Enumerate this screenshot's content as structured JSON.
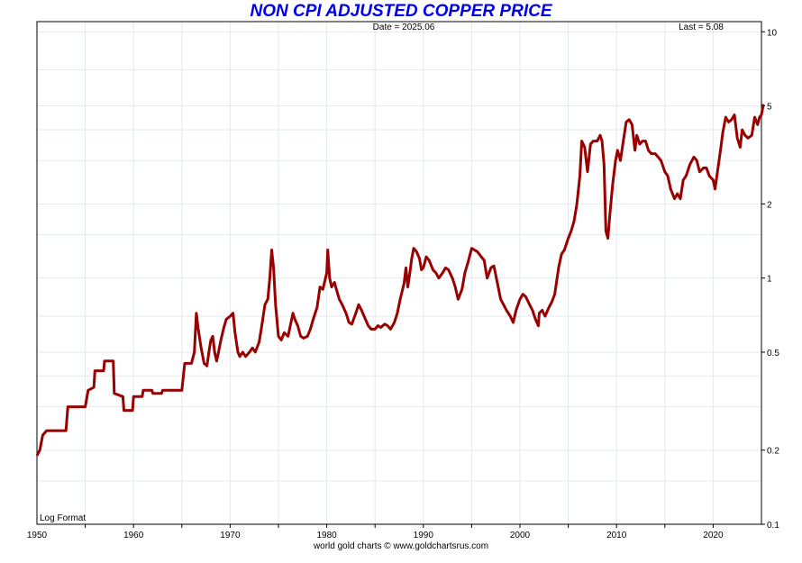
{
  "chart_data": {
    "type": "line",
    "title": "NON CPI ADJUSTED COPPER PRICE",
    "date_label": "Date = 2025.06",
    "last_label": "Last = 5.08",
    "scale_label": "Log Format",
    "credit": "world gold charts © www.goldchartsrus.com",
    "xlim": [
      1950,
      2025
    ],
    "ylim": [
      0.1,
      11
    ],
    "y_scale": "log",
    "grid": true,
    "x_ticks": [
      "1950",
      "1960",
      "1970",
      "1980",
      "1990",
      "2000",
      "2010",
      "2020"
    ],
    "y_ticks": [
      "10",
      "5",
      "2",
      "1",
      "0.5",
      "0.2",
      "0.1"
    ],
    "series": [
      {
        "color": "#990000",
        "points": [
          [
            1950.0,
            0.19
          ],
          [
            1950.3,
            0.2
          ],
          [
            1950.6,
            0.23
          ],
          [
            1951.0,
            0.24
          ],
          [
            1952.0,
            0.24
          ],
          [
            1953.0,
            0.24
          ],
          [
            1953.2,
            0.3
          ],
          [
            1954.0,
            0.3
          ],
          [
            1955.0,
            0.3
          ],
          [
            1955.3,
            0.35
          ],
          [
            1955.9,
            0.36
          ],
          [
            1956.0,
            0.42
          ],
          [
            1956.9,
            0.42
          ],
          [
            1957.0,
            0.46
          ],
          [
            1957.9,
            0.46
          ],
          [
            1958.0,
            0.34
          ],
          [
            1958.9,
            0.33
          ],
          [
            1959.0,
            0.29
          ],
          [
            1959.9,
            0.29
          ],
          [
            1960.0,
            0.33
          ],
          [
            1960.9,
            0.33
          ],
          [
            1961.0,
            0.35
          ],
          [
            1961.9,
            0.35
          ],
          [
            1962.0,
            0.34
          ],
          [
            1962.9,
            0.34
          ],
          [
            1963.0,
            0.35
          ],
          [
            1965.0,
            0.35
          ],
          [
            1965.3,
            0.45
          ],
          [
            1966.0,
            0.45
          ],
          [
            1966.3,
            0.5
          ],
          [
            1966.5,
            0.72
          ],
          [
            1966.7,
            0.62
          ],
          [
            1967.0,
            0.52
          ],
          [
            1967.3,
            0.45
          ],
          [
            1967.6,
            0.44
          ],
          [
            1967.8,
            0.5
          ],
          [
            1968.0,
            0.56
          ],
          [
            1968.2,
            0.58
          ],
          [
            1968.4,
            0.5
          ],
          [
            1968.6,
            0.46
          ],
          [
            1968.8,
            0.5
          ],
          [
            1969.0,
            0.55
          ],
          [
            1969.3,
            0.62
          ],
          [
            1969.6,
            0.68
          ],
          [
            1970.0,
            0.7
          ],
          [
            1970.3,
            0.72
          ],
          [
            1970.5,
            0.6
          ],
          [
            1970.8,
            0.5
          ],
          [
            1971.0,
            0.48
          ],
          [
            1971.3,
            0.5
          ],
          [
            1971.6,
            0.48
          ],
          [
            1972.0,
            0.5
          ],
          [
            1972.3,
            0.52
          ],
          [
            1972.6,
            0.5
          ],
          [
            1973.0,
            0.55
          ],
          [
            1973.3,
            0.65
          ],
          [
            1973.6,
            0.78
          ],
          [
            1973.9,
            0.82
          ],
          [
            1974.1,
            1.0
          ],
          [
            1974.3,
            1.3
          ],
          [
            1974.5,
            1.1
          ],
          [
            1974.7,
            0.78
          ],
          [
            1975.0,
            0.58
          ],
          [
            1975.3,
            0.56
          ],
          [
            1975.6,
            0.6
          ],
          [
            1976.0,
            0.58
          ],
          [
            1976.3,
            0.66
          ],
          [
            1976.5,
            0.72
          ],
          [
            1976.7,
            0.68
          ],
          [
            1977.0,
            0.64
          ],
          [
            1977.3,
            0.58
          ],
          [
            1977.6,
            0.57
          ],
          [
            1978.0,
            0.58
          ],
          [
            1978.3,
            0.62
          ],
          [
            1978.6,
            0.68
          ],
          [
            1979.0,
            0.76
          ],
          [
            1979.3,
            0.92
          ],
          [
            1979.6,
            0.9
          ],
          [
            1980.0,
            1.05
          ],
          [
            1980.1,
            1.3
          ],
          [
            1980.3,
            1.0
          ],
          [
            1980.5,
            0.92
          ],
          [
            1980.8,
            0.96
          ],
          [
            1981.0,
            0.9
          ],
          [
            1981.3,
            0.82
          ],
          [
            1981.6,
            0.78
          ],
          [
            1982.0,
            0.72
          ],
          [
            1982.3,
            0.66
          ],
          [
            1982.6,
            0.65
          ],
          [
            1983.0,
            0.72
          ],
          [
            1983.3,
            0.78
          ],
          [
            1983.6,
            0.74
          ],
          [
            1984.0,
            0.68
          ],
          [
            1984.3,
            0.64
          ],
          [
            1984.6,
            0.62
          ],
          [
            1985.0,
            0.62
          ],
          [
            1985.3,
            0.64
          ],
          [
            1985.6,
            0.63
          ],
          [
            1986.0,
            0.65
          ],
          [
            1986.3,
            0.64
          ],
          [
            1986.6,
            0.62
          ],
          [
            1987.0,
            0.66
          ],
          [
            1987.3,
            0.72
          ],
          [
            1987.6,
            0.82
          ],
          [
            1988.0,
            0.95
          ],
          [
            1988.2,
            1.1
          ],
          [
            1988.4,
            0.92
          ],
          [
            1988.6,
            1.05
          ],
          [
            1988.8,
            1.2
          ],
          [
            1989.0,
            1.32
          ],
          [
            1989.3,
            1.28
          ],
          [
            1989.6,
            1.2
          ],
          [
            1989.8,
            1.08
          ],
          [
            1990.0,
            1.1
          ],
          [
            1990.3,
            1.22
          ],
          [
            1990.6,
            1.18
          ],
          [
            1991.0,
            1.08
          ],
          [
            1991.3,
            1.05
          ],
          [
            1991.6,
            1.0
          ],
          [
            1992.0,
            1.05
          ],
          [
            1992.3,
            1.1
          ],
          [
            1992.6,
            1.08
          ],
          [
            1993.0,
            1.0
          ],
          [
            1993.3,
            0.92
          ],
          [
            1993.6,
            0.82
          ],
          [
            1994.0,
            0.9
          ],
          [
            1994.3,
            1.05
          ],
          [
            1994.6,
            1.15
          ],
          [
            1995.0,
            1.32
          ],
          [
            1995.3,
            1.3
          ],
          [
            1995.6,
            1.28
          ],
          [
            1996.0,
            1.22
          ],
          [
            1996.3,
            1.18
          ],
          [
            1996.6,
            1.0
          ],
          [
            1997.0,
            1.1
          ],
          [
            1997.3,
            1.12
          ],
          [
            1997.6,
            0.98
          ],
          [
            1998.0,
            0.82
          ],
          [
            1998.3,
            0.78
          ],
          [
            1998.6,
            0.74
          ],
          [
            1999.0,
            0.7
          ],
          [
            1999.3,
            0.66
          ],
          [
            1999.6,
            0.74
          ],
          [
            2000.0,
            0.82
          ],
          [
            2000.3,
            0.86
          ],
          [
            2000.6,
            0.84
          ],
          [
            2001.0,
            0.78
          ],
          [
            2001.3,
            0.74
          ],
          [
            2001.6,
            0.68
          ],
          [
            2001.9,
            0.64
          ],
          [
            2002.0,
            0.72
          ],
          [
            2002.3,
            0.74
          ],
          [
            2002.6,
            0.7
          ],
          [
            2003.0,
            0.76
          ],
          [
            2003.3,
            0.8
          ],
          [
            2003.6,
            0.86
          ],
          [
            2004.0,
            1.1
          ],
          [
            2004.3,
            1.25
          ],
          [
            2004.6,
            1.3
          ],
          [
            2005.0,
            1.45
          ],
          [
            2005.3,
            1.55
          ],
          [
            2005.6,
            1.7
          ],
          [
            2005.9,
            2.0
          ],
          [
            2006.2,
            2.6
          ],
          [
            2006.4,
            3.6
          ],
          [
            2006.7,
            3.4
          ],
          [
            2007.0,
            2.7
          ],
          [
            2007.3,
            3.5
          ],
          [
            2007.6,
            3.6
          ],
          [
            2008.0,
            3.6
          ],
          [
            2008.3,
            3.8
          ],
          [
            2008.5,
            3.6
          ],
          [
            2008.7,
            2.9
          ],
          [
            2008.9,
            1.55
          ],
          [
            2009.1,
            1.45
          ],
          [
            2009.3,
            1.8
          ],
          [
            2009.6,
            2.4
          ],
          [
            2009.9,
            3.0
          ],
          [
            2010.1,
            3.3
          ],
          [
            2010.4,
            3.0
          ],
          [
            2010.7,
            3.6
          ],
          [
            2011.0,
            4.3
          ],
          [
            2011.3,
            4.4
          ],
          [
            2011.6,
            4.2
          ],
          [
            2011.9,
            3.3
          ],
          [
            2012.1,
            3.8
          ],
          [
            2012.4,
            3.5
          ],
          [
            2012.7,
            3.6
          ],
          [
            2013.0,
            3.6
          ],
          [
            2013.3,
            3.3
          ],
          [
            2013.6,
            3.2
          ],
          [
            2014.0,
            3.2
          ],
          [
            2014.3,
            3.1
          ],
          [
            2014.6,
            3.0
          ],
          [
            2015.0,
            2.7
          ],
          [
            2015.3,
            2.6
          ],
          [
            2015.6,
            2.3
          ],
          [
            2016.0,
            2.1
          ],
          [
            2016.3,
            2.2
          ],
          [
            2016.6,
            2.1
          ],
          [
            2016.9,
            2.5
          ],
          [
            2017.2,
            2.6
          ],
          [
            2017.6,
            2.9
          ],
          [
            2018.0,
            3.1
          ],
          [
            2018.3,
            3.0
          ],
          [
            2018.6,
            2.7
          ],
          [
            2019.0,
            2.8
          ],
          [
            2019.3,
            2.8
          ],
          [
            2019.6,
            2.6
          ],
          [
            2020.0,
            2.5
          ],
          [
            2020.2,
            2.3
          ],
          [
            2020.5,
            2.8
          ],
          [
            2020.8,
            3.4
          ],
          [
            2021.0,
            3.9
          ],
          [
            2021.3,
            4.5
          ],
          [
            2021.6,
            4.3
          ],
          [
            2021.9,
            4.4
          ],
          [
            2022.2,
            4.6
          ],
          [
            2022.5,
            3.7
          ],
          [
            2022.8,
            3.4
          ],
          [
            2023.0,
            4.0
          ],
          [
            2023.3,
            3.8
          ],
          [
            2023.6,
            3.7
          ],
          [
            2024.0,
            3.8
          ],
          [
            2024.3,
            4.5
          ],
          [
            2024.6,
            4.2
          ],
          [
            2024.8,
            4.5
          ],
          [
            2025.0,
            4.6
          ],
          [
            2025.2,
            5.08
          ]
        ]
      }
    ]
  }
}
